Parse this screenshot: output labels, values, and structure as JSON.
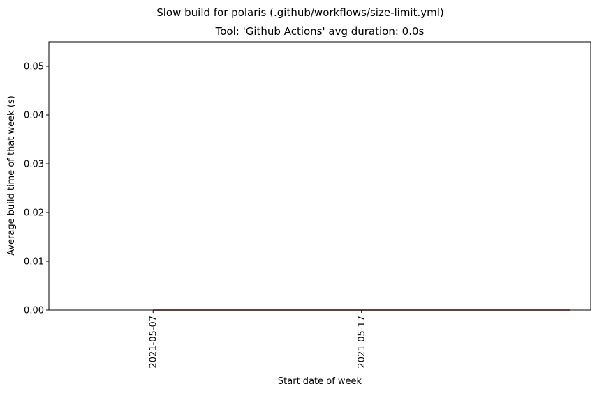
{
  "chart_data": {
    "type": "line",
    "suptitle": "Slow build for polaris (.github/workflows/size-limit.yml)",
    "title": "Tool: 'Github Actions' avg duration: 0.0s",
    "xlabel": "Start date of week",
    "ylabel": "Average build time of that week (s)",
    "x_ticks": [
      "2021-05-07",
      "2021-05-17"
    ],
    "y_ticks": [
      "0.00",
      "0.01",
      "0.02",
      "0.03",
      "0.04",
      "0.05"
    ],
    "ylim": [
      0,
      0.055
    ],
    "xlim": [
      "2021-05-02",
      "2021-05-28"
    ],
    "series": [
      {
        "color": "#8b0000",
        "x": [
          "2021-05-07",
          "2021-05-27"
        ],
        "y": [
          0.0,
          0.0
        ]
      }
    ],
    "grid": false
  }
}
